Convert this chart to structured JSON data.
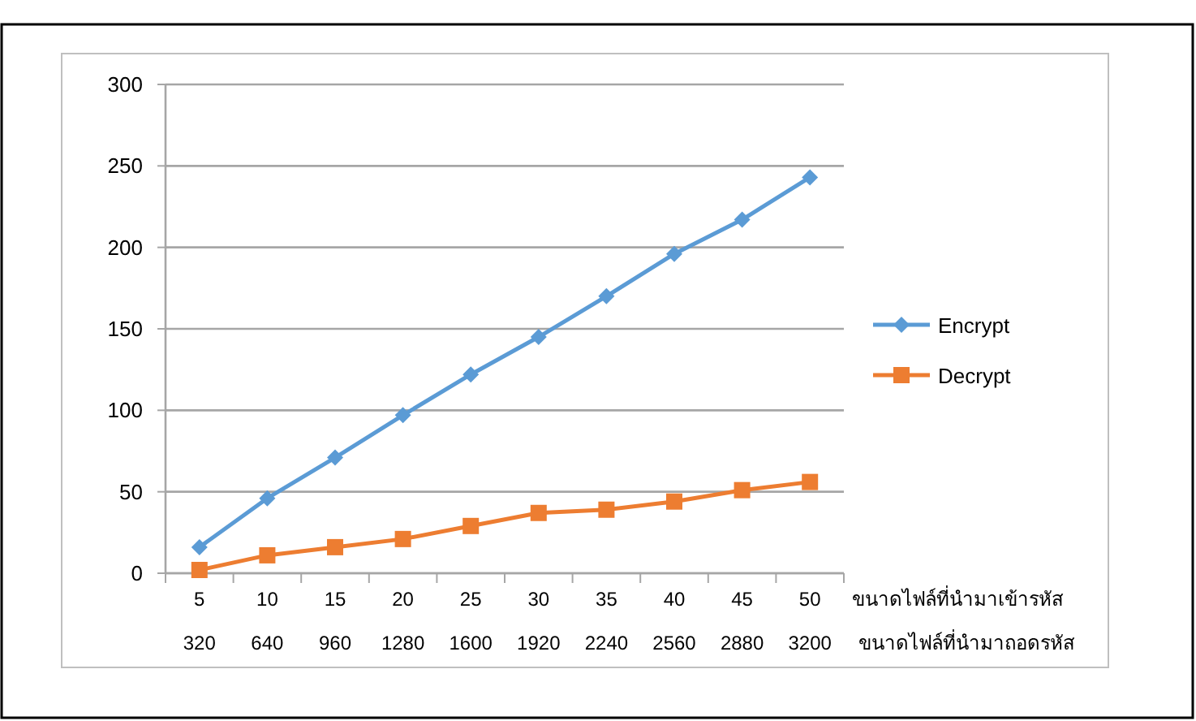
{
  "chart_data": {
    "type": "line",
    "categories": [
      "5\n320",
      "10\n640",
      "15\n960",
      "20\n1280",
      "25\n1600",
      "30\n1920",
      "35\n2240",
      "40\n2560",
      "45\n2880",
      "50\n3200"
    ],
    "xlabel": "ขนาดไฟล์ที่นำมาเข้ารหัส\nขนาดไฟล์ที่นำมาถอดรหัส",
    "series": [
      {
        "name": "Encrypt",
        "color": "#5b9bd5",
        "marker": "diamond",
        "values": [
          16,
          46,
          71,
          97,
          122,
          145,
          170,
          196,
          217,
          243
        ]
      },
      {
        "name": "Decrypt",
        "color": "#ed7d31",
        "marker": "square",
        "values": [
          2,
          11,
          16,
          21,
          29,
          37,
          39,
          44,
          51,
          56
        ]
      }
    ],
    "ylim": [
      0,
      300
    ],
    "yticks": [
      0,
      50,
      100,
      150,
      200,
      250,
      300
    ],
    "grid": "y",
    "legend": "right",
    "line_style": "solid"
  }
}
